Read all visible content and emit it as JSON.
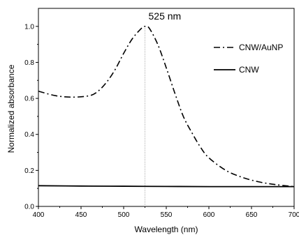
{
  "chart_data": {
    "type": "line",
    "title": "",
    "xlabel": "Wavelength (nm)",
    "ylabel": "Normalized absorbance",
    "xlim": [
      400,
      700
    ],
    "ylim": [
      0.0,
      1.1
    ],
    "xticks": [
      400,
      450,
      500,
      550,
      600,
      650,
      700
    ],
    "yticks": [
      0.0,
      0.2,
      0.4,
      0.6,
      0.8,
      1.0
    ],
    "xtick_labels": [
      "400",
      "450",
      "500",
      "550",
      "600",
      "650",
      "700"
    ],
    "ytick_labels": [
      "0.0",
      "0.2",
      "0.4",
      "0.6",
      "0.8",
      "1.0"
    ],
    "grid": false,
    "legend_position": "top-right",
    "series": [
      {
        "name": "CNW/AuNP",
        "style": "dash-dot",
        "color": "#000000",
        "x": [
          400,
          420,
          440,
          460,
          470,
          480,
          490,
          500,
          510,
          520,
          525,
          530,
          540,
          550,
          560,
          570,
          580,
          590,
          600,
          620,
          640,
          660,
          680,
          700
        ],
        "y": [
          0.64,
          0.615,
          0.607,
          0.615,
          0.64,
          0.69,
          0.76,
          0.85,
          0.93,
          0.985,
          1.0,
          0.99,
          0.9,
          0.77,
          0.63,
          0.5,
          0.41,
          0.33,
          0.27,
          0.2,
          0.16,
          0.135,
          0.12,
          0.11
        ]
      },
      {
        "name": "CNW",
        "style": "solid",
        "color": "#000000",
        "x": [
          400,
          450,
          500,
          550,
          600,
          650,
          700
        ],
        "y": [
          0.115,
          0.113,
          0.112,
          0.111,
          0.11,
          0.11,
          0.11
        ]
      }
    ],
    "annotations": [
      {
        "text": "525 nm",
        "x": 525
      }
    ]
  }
}
